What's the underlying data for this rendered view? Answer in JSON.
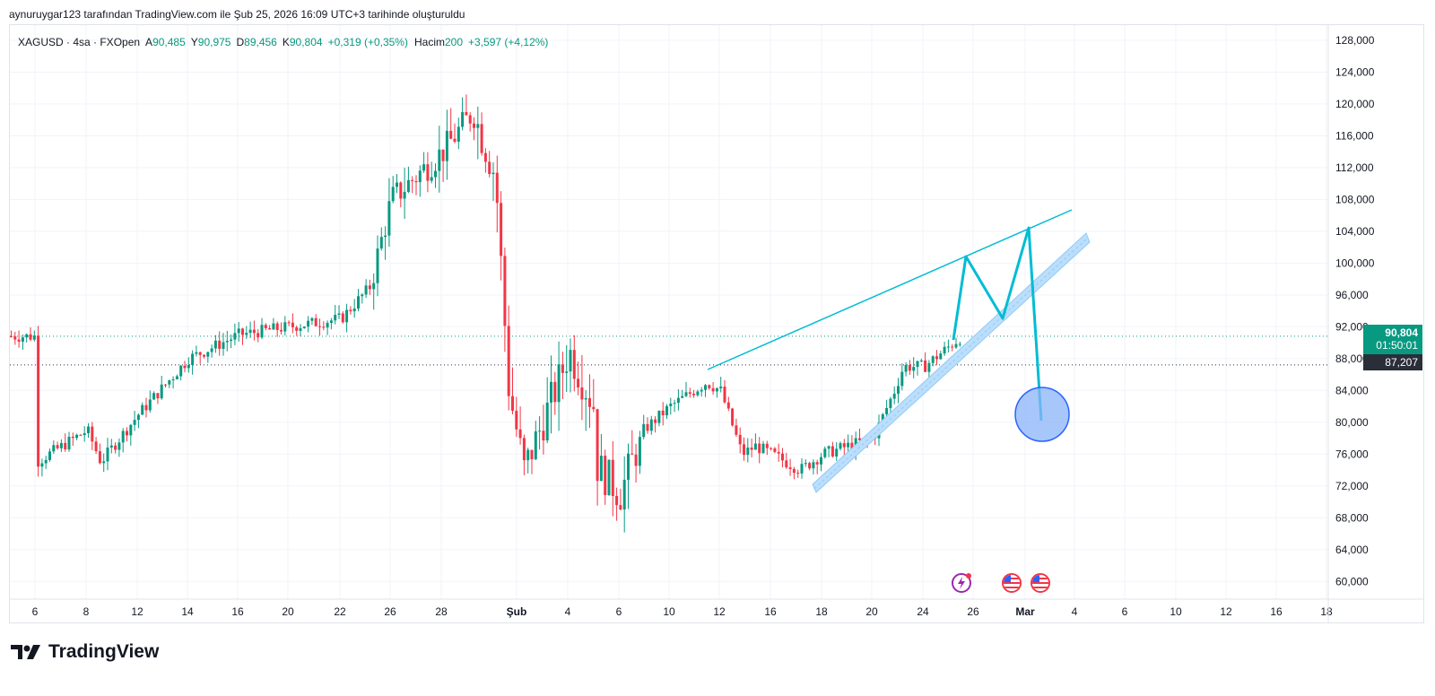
{
  "credit": "aynuruygar123 tarafından TradingView.com ile Şub 25, 2026 16:09 UTC+3 tarihinde oluşturuldu",
  "legend": {
    "symbol": "XAGUSD · 4sa · FXOpen",
    "open_label": "A",
    "open": "90,485",
    "high_label": "Y",
    "high": "90,975",
    "low_label": "D",
    "low": "89,456",
    "close_label": "K",
    "close": "90,804",
    "change": "+0,319 (+0,35%)",
    "volume_label": "Hacim",
    "volume": "200",
    "volume_change": "+3,597 (+4,12%)"
  },
  "price_tags": {
    "last_price": "90,804",
    "countdown": "01:50:01",
    "ref_price": "87,207"
  },
  "brand": "TradingView",
  "colors": {
    "up": "#089981",
    "down": "#f23645",
    "drawing": "#00bcd4",
    "channel": "#90caf9",
    "target_fill": "#8ab4f8",
    "target_stroke": "#2962ff"
  },
  "icons": {
    "flash": "lightning-bolt-icon",
    "flag": "us-flag-icon"
  },
  "chart_data": {
    "type": "candlestick",
    "symbol": "XAGUSD",
    "interval": "4sa",
    "y_ticks": [
      "128,000",
      "124,000",
      "120,000",
      "116,000",
      "112,000",
      "108,000",
      "104,000",
      "100,000",
      "96,000",
      "92,000",
      "88,000",
      "84,000",
      "80,000",
      "76,000",
      "72,000",
      "68,000",
      "64,000",
      "60,000"
    ],
    "x_ticks": [
      "6",
      "8",
      "12",
      "14",
      "16",
      "20",
      "22",
      "26",
      "28",
      "Şub",
      "4",
      "6",
      "10",
      "12",
      "16",
      "18",
      "20",
      "24",
      "26",
      "Mar",
      "4",
      "6",
      "10",
      "12",
      "16",
      "18"
    ],
    "ylim": [
      58,
      129
    ],
    "path_keypoints": [
      [
        "6 Oca",
        75
      ],
      [
        "8 Oca",
        79
      ],
      [
        "9 Oca",
        75
      ],
      [
        "12 Oca",
        81
      ],
      [
        "14 Oca",
        88
      ],
      [
        "16 Oca",
        91
      ],
      [
        "20 Oca",
        92
      ],
      [
        "22 Oca",
        93
      ],
      [
        "24 Oca",
        97
      ],
      [
        "26 Oca",
        108
      ],
      [
        "28 Oca",
        114
      ],
      [
        "29 Oca",
        119
      ],
      [
        "30 Oca",
        111
      ],
      [
        "31 Oca",
        84
      ],
      [
        "1 Şub",
        74
      ],
      [
        "3 Şub",
        85
      ],
      [
        "4 Şub",
        89
      ],
      [
        "5 Şub",
        82
      ],
      [
        "5 Şub",
        75
      ],
      [
        "6 Şub",
        71
      ],
      [
        "8 Şub",
        79
      ],
      [
        "10 Şub",
        82
      ],
      [
        "11 Şub",
        85
      ],
      [
        "12 Şub",
        84
      ],
      [
        "13 Şub",
        76
      ],
      [
        "14 Şub",
        77
      ],
      [
        "16 Şub",
        76
      ],
      [
        "17 Şub",
        74
      ],
      [
        "18 Şub",
        76
      ],
      [
        "20 Şub",
        78
      ],
      [
        "21 Şub",
        84
      ],
      [
        "22 Şub",
        87
      ],
      [
        "24 Şub",
        87
      ],
      [
        "25 Şub",
        90.8
      ]
    ]
  }
}
